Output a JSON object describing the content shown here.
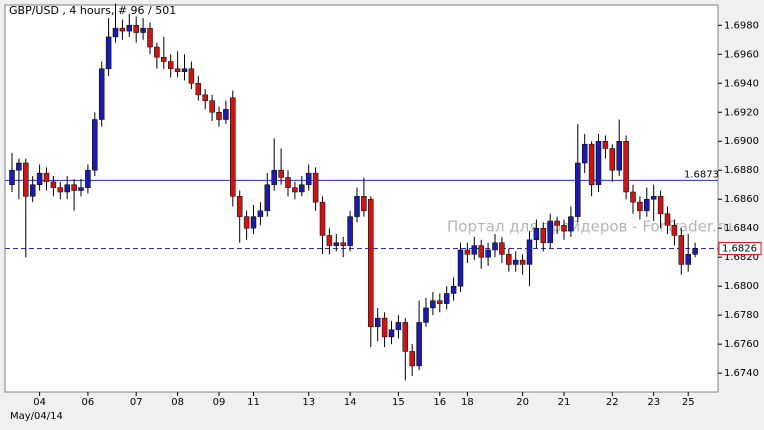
{
  "chart_data": {
    "type": "candlestick",
    "title": "GBP/USD , 4 hours, # 96 / 501",
    "date_label": "May/04/14",
    "watermark": "Портал для трейдеров - ForTrader.ru",
    "up_color": "#1c1ca8",
    "down_color": "#c81616",
    "categories": [
      null,
      null,
      null,
      null,
      "04",
      null,
      null,
      null,
      null,
      null,
      null,
      "06",
      null,
      null,
      null,
      null,
      null,
      null,
      "07",
      null,
      null,
      null,
      null,
      null,
      "08",
      null,
      null,
      null,
      null,
      null,
      "09",
      null,
      null,
      null,
      null,
      "11",
      null,
      null,
      null,
      null,
      null,
      null,
      null,
      "13",
      null,
      null,
      null,
      null,
      null,
      "14",
      null,
      null,
      null,
      null,
      null,
      null,
      "15",
      null,
      null,
      null,
      null,
      null,
      "16",
      null,
      null,
      null,
      "18",
      null,
      null,
      null,
      null,
      null,
      null,
      null,
      "20",
      null,
      null,
      null,
      null,
      null,
      "21",
      null,
      null,
      null,
      null,
      null,
      null,
      "22",
      null,
      null,
      null,
      null,
      null,
      "23",
      null,
      null,
      null,
      null,
      "25",
      null
    ],
    "open": [
      1.687,
      1.688,
      1.6885,
      1.6862,
      1.687,
      1.6878,
      1.6872,
      1.6868,
      1.6865,
      1.687,
      1.6866,
      1.6868,
      1.688,
      1.6915,
      1.695,
      1.6972,
      1.6978,
      1.6976,
      1.698,
      1.6975,
      1.6978,
      1.6965,
      1.6958,
      1.6955,
      1.695,
      1.6948,
      1.695,
      1.694,
      1.6932,
      1.6928,
      1.692,
      1.6915,
      1.693,
      1.6862,
      1.6848,
      1.684,
      1.6848,
      1.6852,
      1.687,
      1.688,
      1.6875,
      1.6868,
      1.6865,
      1.687,
      1.6878,
      1.6858,
      1.6835,
      1.6828,
      1.683,
      1.6828,
      1.6848,
      1.6862,
      1.686,
      1.6772,
      1.6778,
      1.6765,
      1.677,
      1.6775,
      1.6755,
      1.6745,
      1.6775,
      1.6785,
      1.679,
      1.6788,
      1.6795,
      1.68,
      1.6825,
      1.6822,
      1.6828,
      1.682,
      1.6825,
      1.683,
      1.6822,
      1.6815,
      1.6818,
      1.6815,
      1.6832,
      1.684,
      1.683,
      1.6845,
      1.6842,
      1.6838,
      1.6848,
      1.6885,
      1.6898,
      1.687,
      1.69,
      1.6895,
      1.688,
      1.69,
      1.6865,
      1.6858,
      1.6852,
      1.686,
      1.6862,
      1.685,
      1.6842,
      1.6835,
      1.6815,
      1.6822
    ],
    "high": [
      1.6892,
      1.6888,
      1.6888,
      1.6876,
      1.6884,
      1.6882,
      1.6876,
      1.6872,
      1.6876,
      1.6874,
      1.6874,
      1.6884,
      1.692,
      1.6955,
      1.6985,
      1.6995,
      1.6984,
      1.6988,
      1.6986,
      1.6985,
      1.6982,
      1.6968,
      1.6972,
      1.696,
      1.6962,
      1.696,
      1.6955,
      1.6945,
      1.6936,
      1.6932,
      1.6924,
      1.6928,
      1.6935,
      1.6866,
      1.6852,
      1.6856,
      1.6858,
      1.6878,
      1.6902,
      1.6895,
      1.688,
      1.6872,
      1.6876,
      1.6884,
      1.6882,
      1.6862,
      1.684,
      1.6836,
      1.6834,
      1.6852,
      1.6868,
      1.6875,
      1.6862,
      1.6785,
      1.6782,
      1.6776,
      1.678,
      1.6778,
      1.676,
      1.679,
      1.6792,
      1.6796,
      1.6795,
      1.68,
      1.6806,
      1.683,
      1.683,
      1.6834,
      1.6832,
      1.683,
      1.6836,
      1.6834,
      1.6826,
      1.6824,
      1.6822,
      1.6838,
      1.6846,
      1.6844,
      1.685,
      1.6848,
      1.6846,
      1.6855,
      1.6912,
      1.6905,
      1.69,
      1.6905,
      1.6904,
      1.6898,
      1.6915,
      1.6904,
      1.687,
      1.6862,
      1.6868,
      1.687,
      1.6866,
      1.6855,
      1.6846,
      1.684,
      1.6836,
      1.683
    ],
    "low": [
      1.6865,
      1.686,
      1.682,
      1.6858,
      1.6866,
      1.6866,
      1.6862,
      1.686,
      1.686,
      1.6852,
      1.6862,
      1.6864,
      1.6876,
      1.691,
      1.6945,
      1.6968,
      1.697,
      1.6972,
      1.6968,
      1.697,
      1.696,
      1.695,
      1.695,
      1.6944,
      1.6944,
      1.6942,
      1.6936,
      1.6928,
      1.6922,
      1.6914,
      1.691,
      1.6912,
      1.6855,
      1.683,
      1.6832,
      1.6836,
      1.6842,
      1.6848,
      1.6866,
      1.687,
      1.6862,
      1.686,
      1.6862,
      1.6866,
      1.6852,
      1.6822,
      1.6822,
      1.6824,
      1.682,
      1.6824,
      1.6844,
      1.6848,
      1.6758,
      1.6762,
      1.6758,
      1.676,
      1.6764,
      1.6735,
      1.6738,
      1.6742,
      1.6772,
      1.678,
      1.6782,
      1.6784,
      1.679,
      1.6796,
      1.6816,
      1.6818,
      1.6812,
      1.6814,
      1.682,
      1.6816,
      1.681,
      1.681,
      1.6808,
      1.68,
      1.6826,
      1.6824,
      1.6826,
      1.6836,
      1.6832,
      1.6834,
      1.6844,
      1.6878,
      1.6862,
      1.6865,
      1.6888,
      1.6872,
      1.6876,
      1.686,
      1.685,
      1.6846,
      1.6848,
      1.6845,
      1.684,
      1.6836,
      1.6828,
      1.6808,
      1.681,
      1.682
    ],
    "close": [
      1.688,
      1.6885,
      1.6862,
      1.687,
      1.6878,
      1.6872,
      1.6868,
      1.6865,
      1.687,
      1.6866,
      1.6868,
      1.688,
      1.6915,
      1.695,
      1.6972,
      1.6978,
      1.6976,
      1.698,
      1.6975,
      1.6978,
      1.6965,
      1.6958,
      1.6955,
      1.695,
      1.6948,
      1.695,
      1.694,
      1.6932,
      1.6928,
      1.692,
      1.6915,
      1.6922,
      1.6862,
      1.6848,
      1.684,
      1.6848,
      1.6852,
      1.687,
      1.688,
      1.6875,
      1.6868,
      1.6865,
      1.687,
      1.6878,
      1.6858,
      1.6835,
      1.6828,
      1.683,
      1.6828,
      1.6848,
      1.6862,
      1.6852,
      1.6772,
      1.6778,
      1.6765,
      1.677,
      1.6775,
      1.6755,
      1.6745,
      1.6775,
      1.6785,
      1.679,
      1.6788,
      1.6795,
      1.68,
      1.6825,
      1.6822,
      1.6828,
      1.682,
      1.6825,
      1.683,
      1.6822,
      1.6815,
      1.6818,
      1.6815,
      1.6832,
      1.684,
      1.683,
      1.6845,
      1.6842,
      1.6838,
      1.6848,
      1.6885,
      1.6898,
      1.687,
      1.69,
      1.6895,
      1.688,
      1.69,
      1.6865,
      1.6858,
      1.6852,
      1.686,
      1.6862,
      1.685,
      1.6842,
      1.6835,
      1.6815,
      1.6822,
      1.6826
    ],
    "ylim": [
      1.6727,
      1.6994
    ],
    "yticks": [
      {
        "value": 1.674,
        "label": "1.6740"
      },
      {
        "value": 1.676,
        "label": "1.6760"
      },
      {
        "value": 1.678,
        "label": "1.6780"
      },
      {
        "value": 1.68,
        "label": "1.6800"
      },
      {
        "value": 1.682,
        "label": "1.6820"
      },
      {
        "value": 1.684,
        "label": "1.6840"
      },
      {
        "value": 1.686,
        "label": "1.6860"
      },
      {
        "value": 1.688,
        "label": "1.6880"
      },
      {
        "value": 1.69,
        "label": "1.6900"
      },
      {
        "value": 1.692,
        "label": "1.6920"
      },
      {
        "value": 1.694,
        "label": "1.6940"
      },
      {
        "value": 1.696,
        "label": "1.6960"
      },
      {
        "value": 1.698,
        "label": "1.6980"
      }
    ],
    "grid": false,
    "hlines": [
      {
        "value": 1.6873,
        "label": "1.6873",
        "color": "#2b2bcc",
        "style": "solid"
      },
      {
        "value": 1.6826,
        "label": "1.6826",
        "color": "#2b2bcc",
        "style": "dashed"
      }
    ]
  }
}
